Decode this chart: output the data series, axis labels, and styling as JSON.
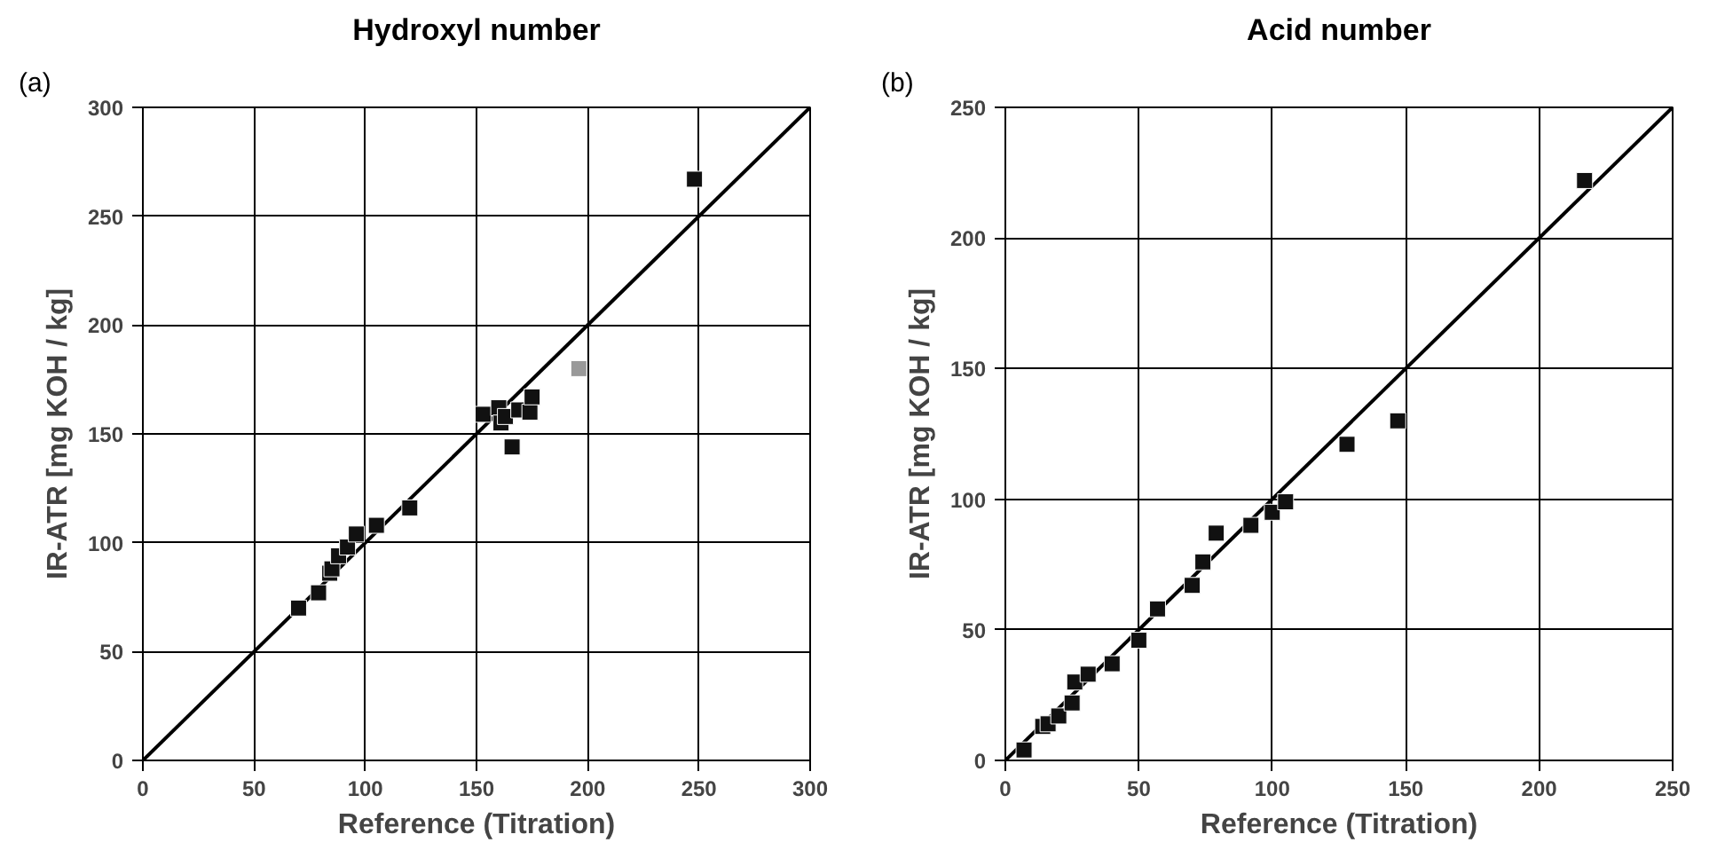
{
  "chart_data": [
    {
      "type": "scatter",
      "title": "Hydroxyl number",
      "annotations": [
        "(a)"
      ],
      "xlabel": "Reference (Titration)",
      "ylabel": "IR-ATR [mg KOH / kg]",
      "xlim": [
        0,
        300
      ],
      "ylim": [
        0,
        300
      ],
      "xticks": [
        0,
        50,
        100,
        150,
        200,
        250,
        300
      ],
      "yticks": [
        0,
        50,
        100,
        150,
        200,
        250,
        300
      ],
      "grid": true,
      "marker": "square",
      "series": [
        {
          "type": "line",
          "color": "#000000",
          "x": [
            0,
            300
          ],
          "values": [
            0,
            300
          ],
          "marker": "none"
        },
        {
          "color": "#111111",
          "x": [
            70,
            79,
            84,
            85,
            88,
            92,
            96,
            105,
            120,
            153,
            160,
            161,
            163,
            166,
            169,
            174,
            175,
            248
          ],
          "values": [
            70,
            77,
            86,
            88,
            94,
            98,
            104,
            108,
            116,
            159,
            162,
            155,
            158,
            144,
            161,
            160,
            167,
            267
          ]
        },
        {
          "color": "#999999",
          "x": [
            196
          ],
          "values": [
            180
          ]
        }
      ]
    },
    {
      "type": "scatter",
      "title": "Acid number",
      "annotations": [
        "(b)"
      ],
      "xlabel": "Reference (Titration)",
      "ylabel": "IR-ATR [mg KOH / kg]",
      "xlim": [
        0,
        250
      ],
      "ylim": [
        0,
        250
      ],
      "xticks": [
        0,
        50,
        100,
        150,
        200,
        250
      ],
      "yticks": [
        0,
        50,
        100,
        150,
        200,
        250
      ],
      "grid": true,
      "marker": "square",
      "series": [
        {
          "type": "line",
          "color": "#000000",
          "x": [
            0,
            250
          ],
          "values": [
            0,
            250
          ],
          "marker": "none"
        },
        {
          "color": "#111111",
          "x": [
            7,
            14,
            16,
            20,
            25,
            26,
            31,
            40,
            50,
            57,
            70,
            74,
            79,
            92,
            100,
            105,
            128,
            147,
            217
          ],
          "values": [
            4,
            13,
            14,
            17,
            22,
            30,
            33,
            37,
            46,
            58,
            67,
            76,
            87,
            90,
            95,
            99,
            121,
            130,
            222
          ]
        }
      ]
    }
  ]
}
